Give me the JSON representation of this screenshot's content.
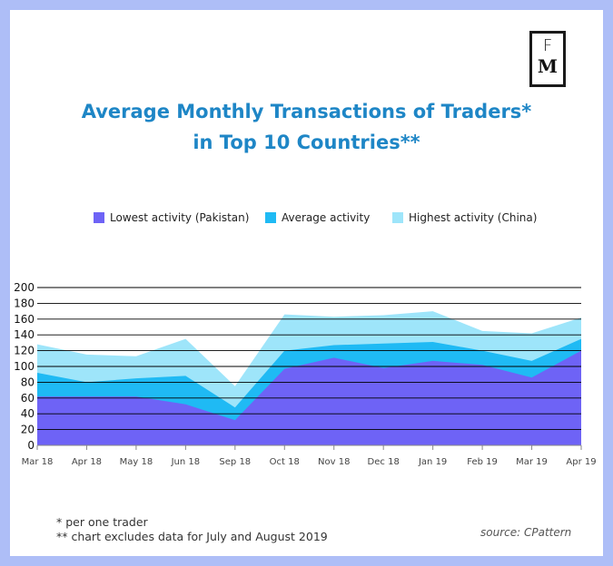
{
  "logo": {
    "top": "F",
    "bottom": "M"
  },
  "title": {
    "line1": "Average Monthly Transactions of Traders*",
    "line2": "in Top 10 Countries**"
  },
  "legend": [
    {
      "label": "Lowest activity (Pakistan)",
      "color": "#6e63f6"
    },
    {
      "label": "Average activity",
      "color": "#1fbaf4"
    },
    {
      "label": "Highest activity (China)",
      "color": "#9ee5fa"
    }
  ],
  "chart_data": {
    "type": "area",
    "title": "Average Monthly Transactions of Traders* in Top 10 Countries**",
    "categories": [
      "Mar 18",
      "Apr 18",
      "May 18",
      "Jun 18",
      "Sep 18",
      "Oct 18",
      "Nov 18",
      "Dec 18",
      "Jan 19",
      "Feb 19",
      "Mar 19",
      "Apr 19"
    ],
    "series": [
      {
        "name": "Highest activity (China)",
        "color": "#9ee5fa",
        "values": [
          128,
          115,
          113,
          135,
          75,
          166,
          163,
          165,
          170,
          145,
          142,
          162
        ]
      },
      {
        "name": "Average activity",
        "color": "#1fbaf4",
        "values": [
          92,
          80,
          85,
          88,
          48,
          120,
          127,
          129,
          131,
          120,
          107,
          135
        ]
      },
      {
        "name": "Lowest activity (Pakistan)",
        "color": "#6e63f6",
        "values": [
          62,
          62,
          62,
          52,
          32,
          97,
          111,
          98,
          107,
          102,
          86,
          120
        ]
      }
    ],
    "yticks": [
      0,
      20,
      40,
      60,
      80,
      100,
      120,
      140,
      160,
      180,
      200
    ],
    "ylim": [
      0,
      200
    ],
    "xlabel": "",
    "ylabel": "",
    "grid": true
  },
  "notes": [
    "*   per one trader",
    "** chart excludes data for July and August 2019"
  ],
  "source": "source: CPattern"
}
